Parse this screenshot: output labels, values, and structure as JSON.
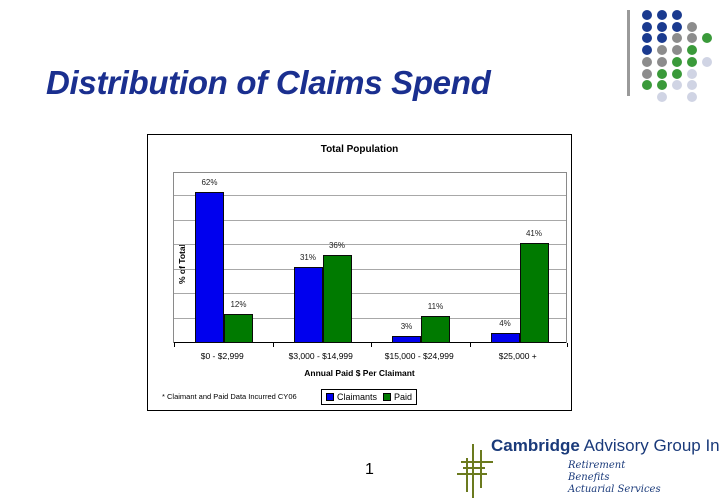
{
  "slide": {
    "title": "Distribution of Claims Spend",
    "page_number": "1"
  },
  "logo": {
    "company_bold": "Cambridge",
    "company_rest": " Advisory Group Inc.",
    "taglines": [
      "Retirement",
      "Benefits",
      "Actuarial Services"
    ],
    "icon": "grid-hash-icon",
    "color": "#1a3a7a",
    "icon_color": "#6b7a1e"
  },
  "decoration": {
    "dot_colors": {
      "blue": "#1a3a8f",
      "gray": "#8c8c8c",
      "green": "#3a9a3a",
      "light": "#d0d4e4"
    }
  },
  "chart_data": {
    "type": "bar",
    "title": "Total Population",
    "xlabel": "Annual Paid $ Per Claimant",
    "ylabel": "% of Total",
    "categories": [
      "$0 - $2,999",
      "$3,000 - $14,999",
      "$15,000 - $24,999",
      "$25,000 +"
    ],
    "series": [
      {
        "name": "Claimants",
        "values": [
          62,
          31,
          3,
          4
        ],
        "labels": [
          "62%",
          "31%",
          "3%",
          "4%"
        ],
        "color": "#0000ee"
      },
      {
        "name": "Paid",
        "values": [
          12,
          36,
          11,
          41
        ],
        "labels": [
          "12%",
          "36%",
          "11%",
          "41%"
        ],
        "color": "#007a00"
      }
    ],
    "ylim": [
      0,
      70
    ],
    "y_tick_labels_shown": false,
    "grid": true,
    "gridline_step": 10,
    "legend_position": "bottom",
    "footnote": "* Claimant and Paid Data Incurred CY06"
  }
}
